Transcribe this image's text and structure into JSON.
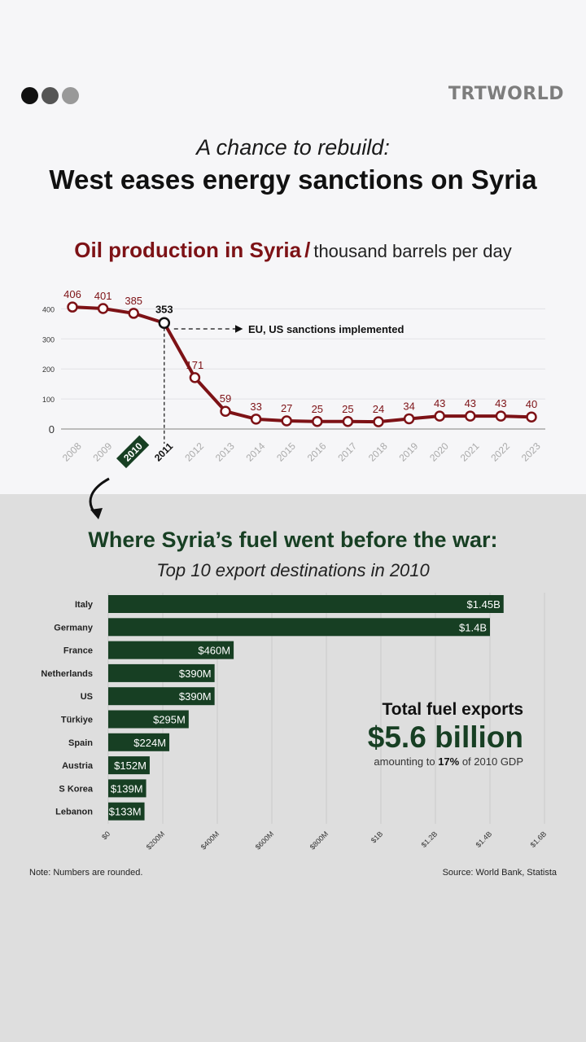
{
  "header": {
    "dot_colors": [
      "#111111",
      "#555555",
      "#999999"
    ],
    "logo": "TRTWORLD",
    "subtitle": "A chance to rebuild:",
    "headline": "West eases energy sanctions on Syria"
  },
  "colors": {
    "red": "#7d1216",
    "green": "#173f23"
  },
  "chart_data": [
    {
      "type": "line",
      "title": "Oil production in Syria",
      "title_separator": "/",
      "unit": "thousand barrels per day",
      "x": [
        "2008",
        "2009",
        "2010",
        "2011",
        "2012",
        "2013",
        "2014",
        "2015",
        "2016",
        "2017",
        "2018",
        "2019",
        "2020",
        "2021",
        "2022",
        "2023"
      ],
      "values": [
        406,
        401,
        385,
        353,
        171,
        59,
        33,
        27,
        25,
        25,
        24,
        34,
        43,
        43,
        43,
        40
      ],
      "y_ticks": [
        0,
        100,
        200,
        300,
        400
      ],
      "ylim": [
        0,
        420
      ],
      "highlight_year": "2010",
      "annotation": {
        "x": "2011",
        "text": "EU, US sanctions implemented"
      },
      "grid": true
    },
    {
      "type": "bar",
      "orientation": "horizontal",
      "title": "Where Syria’s fuel went before the war:",
      "subtitle": "Top 10 export destinations in 2010",
      "categories": [
        "Italy",
        "Germany",
        "France",
        "Netherlands",
        "US",
        "Türkiye",
        "Spain",
        "Austria",
        "S Korea",
        "Lebanon"
      ],
      "values": [
        1.45,
        1.4,
        0.46,
        0.39,
        0.39,
        0.295,
        0.224,
        0.152,
        0.139,
        0.133
      ],
      "value_unit": "billion USD",
      "labels": [
        "$1.45B",
        "$1.4B",
        "$460M",
        "$390M",
        "$390M",
        "$295M",
        "$224M",
        "$152M",
        "$139M",
        "$133M"
      ],
      "x_ticks": [
        0,
        0.2,
        0.4,
        0.6,
        0.8,
        1.0,
        1.2,
        1.4,
        1.6
      ],
      "x_tick_labels": [
        "$0",
        "$200M",
        "$400M",
        "$600M",
        "$800M",
        "$1B",
        "$1.2B",
        "$1.4B",
        "$1.6B"
      ],
      "xlim": [
        0,
        1.6
      ],
      "grid": true
    }
  ],
  "totals": {
    "label": "Total fuel exports",
    "value": "$5.6 billion",
    "note_prefix": "amounting to ",
    "note_bold": "17%",
    "note_suffix": " of 2010 GDP"
  },
  "footer": {
    "note": "Note: Numbers are rounded.",
    "source": "Source: World Bank, Statista"
  }
}
